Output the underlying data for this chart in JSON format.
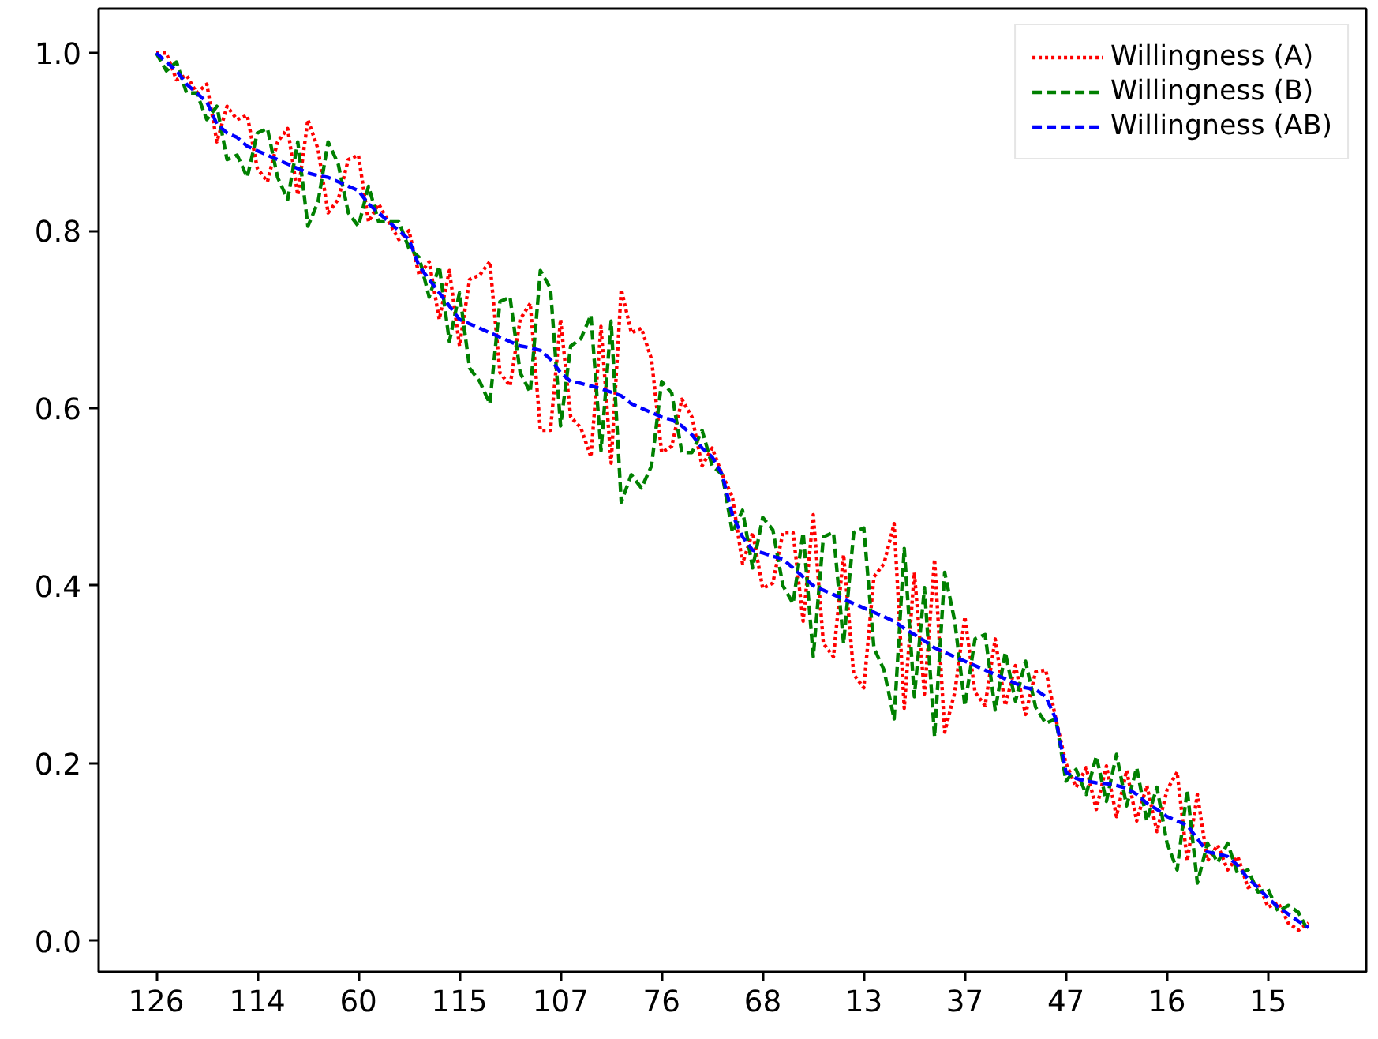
{
  "chart_data": {
    "type": "line",
    "categories": [
      "126",
      null,
      null,
      null,
      null,
      null,
      null,
      null,
      null,
      null,
      "114",
      null,
      null,
      null,
      null,
      null,
      null,
      null,
      null,
      null,
      "60",
      null,
      null,
      null,
      null,
      null,
      null,
      null,
      null,
      null,
      "115",
      null,
      null,
      null,
      null,
      null,
      null,
      null,
      null,
      null,
      "107",
      null,
      null,
      null,
      null,
      null,
      null,
      null,
      null,
      null,
      "76",
      null,
      null,
      null,
      null,
      null,
      null,
      null,
      null,
      null,
      "68",
      null,
      null,
      null,
      null,
      null,
      null,
      null,
      null,
      null,
      "13",
      null,
      null,
      null,
      null,
      null,
      null,
      null,
      null,
      null,
      "37",
      null,
      null,
      null,
      null,
      null,
      null,
      null,
      null,
      null,
      "47",
      null,
      null,
      null,
      null,
      null,
      null,
      null,
      null,
      null,
      "16",
      null,
      null,
      null,
      null,
      null,
      null,
      null,
      null,
      null,
      "15",
      null,
      null,
      null,
      null
    ],
    "series": [
      {
        "name": "Willingness (A)",
        "color": "#ff0000",
        "line_style": "dotted",
        "values": [
          1.0,
          1.0,
          0.97,
          0.975,
          0.955,
          0.965,
          0.9,
          0.94,
          0.925,
          0.93,
          0.87,
          0.855,
          0.9,
          0.915,
          0.84,
          0.925,
          0.892,
          0.82,
          0.835,
          0.88,
          0.885,
          0.81,
          0.83,
          0.81,
          0.79,
          0.8,
          0.75,
          0.765,
          0.7,
          0.755,
          0.67,
          0.745,
          0.75,
          0.765,
          0.64,
          0.625,
          0.7,
          0.718,
          0.575,
          0.575,
          0.7,
          0.59,
          0.578,
          0.545,
          0.692,
          0.538,
          0.734,
          0.685,
          0.69,
          0.655,
          0.55,
          0.557,
          0.61,
          0.59,
          0.535,
          0.555,
          0.525,
          0.5,
          0.425,
          0.46,
          0.397,
          0.403,
          0.46,
          0.46,
          0.36,
          0.48,
          0.335,
          0.32,
          0.435,
          0.3,
          0.285,
          0.41,
          0.425,
          0.47,
          0.262,
          0.415,
          0.278,
          0.43,
          0.235,
          0.28,
          0.365,
          0.28,
          0.265,
          0.34,
          0.265,
          0.31,
          0.255,
          0.303,
          0.305,
          0.25,
          0.2,
          0.173,
          0.195,
          0.148,
          0.197,
          0.14,
          0.192,
          0.135,
          0.175,
          0.123,
          0.17,
          0.19,
          0.09,
          0.165,
          0.09,
          0.108,
          0.08,
          0.095,
          0.06,
          0.065,
          0.038,
          0.043,
          0.02,
          0.012,
          0.02
        ]
      },
      {
        "name": "Willingness (B)",
        "color": "#008000",
        "line_style": "dashed",
        "values": [
          1.0,
          0.98,
          0.99,
          0.955,
          0.955,
          0.925,
          0.94,
          0.88,
          0.885,
          0.86,
          0.91,
          0.915,
          0.86,
          0.835,
          0.9,
          0.805,
          0.832,
          0.9,
          0.875,
          0.82,
          0.805,
          0.85,
          0.81,
          0.81,
          0.81,
          0.78,
          0.77,
          0.725,
          0.76,
          0.675,
          0.73,
          0.645,
          0.63,
          0.605,
          0.72,
          0.725,
          0.64,
          0.618,
          0.755,
          0.735,
          0.58,
          0.67,
          0.678,
          0.705,
          0.552,
          0.698,
          0.494,
          0.525,
          0.51,
          0.535,
          0.63,
          0.617,
          0.55,
          0.55,
          0.575,
          0.535,
          0.525,
          0.46,
          0.485,
          0.42,
          0.477,
          0.463,
          0.4,
          0.38,
          0.46,
          0.32,
          0.455,
          0.46,
          0.335,
          0.46,
          0.465,
          0.33,
          0.305,
          0.25,
          0.442,
          0.275,
          0.398,
          0.23,
          0.415,
          0.36,
          0.265,
          0.34,
          0.345,
          0.26,
          0.325,
          0.27,
          0.315,
          0.263,
          0.245,
          0.25,
          0.18,
          0.193,
          0.165,
          0.208,
          0.157,
          0.21,
          0.152,
          0.195,
          0.135,
          0.173,
          0.11,
          0.08,
          0.17,
          0.065,
          0.11,
          0.088,
          0.11,
          0.075,
          0.08,
          0.055,
          0.058,
          0.033,
          0.04,
          0.032,
          0.01
        ]
      },
      {
        "name": "Willingness (AB)",
        "color": "#0000ff",
        "line_style": "dashed",
        "values": [
          1.0,
          0.99,
          0.98,
          0.965,
          0.955,
          0.945,
          0.92,
          0.91,
          0.905,
          0.895,
          0.89,
          0.885,
          0.88,
          0.875,
          0.87,
          0.865,
          0.862,
          0.86,
          0.855,
          0.85,
          0.845,
          0.83,
          0.82,
          0.81,
          0.8,
          0.79,
          0.76,
          0.745,
          0.73,
          0.715,
          0.7,
          0.695,
          0.69,
          0.685,
          0.68,
          0.675,
          0.67,
          0.668,
          0.665,
          0.655,
          0.64,
          0.63,
          0.628,
          0.625,
          0.622,
          0.618,
          0.614,
          0.605,
          0.6,
          0.595,
          0.59,
          0.587,
          0.58,
          0.57,
          0.555,
          0.545,
          0.525,
          0.48,
          0.455,
          0.44,
          0.437,
          0.433,
          0.43,
          0.42,
          0.41,
          0.4,
          0.395,
          0.39,
          0.385,
          0.38,
          0.375,
          0.37,
          0.365,
          0.36,
          0.352,
          0.345,
          0.338,
          0.33,
          0.325,
          0.32,
          0.315,
          0.31,
          0.305,
          0.3,
          0.295,
          0.29,
          0.285,
          0.283,
          0.275,
          0.25,
          0.19,
          0.183,
          0.18,
          0.178,
          0.177,
          0.175,
          0.172,
          0.165,
          0.155,
          0.148,
          0.14,
          0.135,
          0.13,
          0.115,
          0.1,
          0.098,
          0.095,
          0.085,
          0.07,
          0.06,
          0.048,
          0.038,
          0.03,
          0.022,
          0.015
        ]
      }
    ],
    "ylim": [
      -0.035,
      1.05
    ],
    "yticks": [
      {
        "value": 0,
        "label": "0.0"
      },
      {
        "value": 0.2,
        "label": "0.2"
      },
      {
        "value": 0.4,
        "label": "0.4"
      },
      {
        "value": 0.6,
        "label": "0.6"
      },
      {
        "value": 0.8,
        "label": "0.8"
      },
      {
        "value": 1.0,
        "label": "1.0"
      }
    ],
    "grid": false,
    "legend": "top right"
  }
}
